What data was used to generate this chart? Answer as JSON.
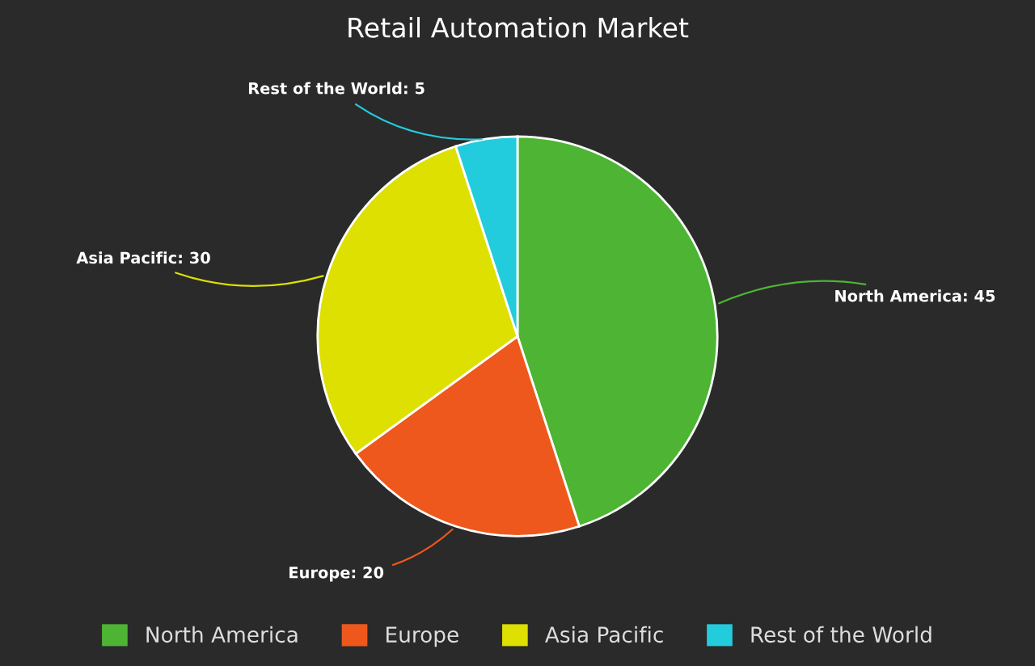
{
  "chart_data": {
    "type": "pie",
    "title": "Retail Automation Market",
    "categories": [
      "North America",
      "Europe",
      "Asia Pacific",
      "Rest of the World"
    ],
    "values": [
      45,
      20,
      30,
      5
    ],
    "value_labels": [
      "North America: 45",
      "Europe: 20",
      "Asia Pacific: 30",
      "Rest of the World: 5"
    ],
    "colors": [
      "#4db533",
      "#ee581c",
      "#dde000",
      "#22ccdd"
    ],
    "legend": "bottom"
  }
}
